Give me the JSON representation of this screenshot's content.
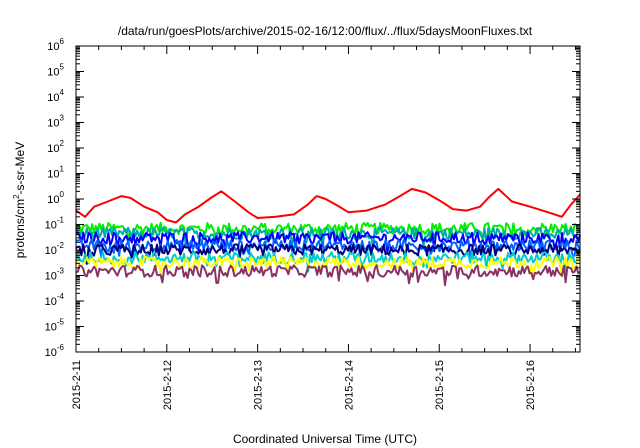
{
  "chart_data": {
    "type": "line",
    "title": "/data/run/goesPlots/archive/2015-02-16/12:00/flux/../flux/5daysMoonFluxes.txt",
    "xlabel": "Coordinated Universal Time (UTC)",
    "ylabel": "protons/cm2-s-sr-MeV",
    "ylabel_parts": {
      "pre": "protons/cm",
      "sup": "2",
      "post": "-s-sr-MeV"
    },
    "yscale": "log",
    "ylim": [
      1e-06,
      1000000.0
    ],
    "y_ticks": [
      {
        "base": "10",
        "exp": "-6",
        "value": 1e-06
      },
      {
        "base": "10",
        "exp": "-5",
        "value": 1e-05
      },
      {
        "base": "10",
        "exp": "-4",
        "value": 0.0001
      },
      {
        "base": "10",
        "exp": "-3",
        "value": 0.001
      },
      {
        "base": "10",
        "exp": "-2",
        "value": 0.01
      },
      {
        "base": "10",
        "exp": "-1",
        "value": 0.1
      },
      {
        "base": "10",
        "exp": "0",
        "value": 1
      },
      {
        "base": "10",
        "exp": "1",
        "value": 10
      },
      {
        "base": "10",
        "exp": "2",
        "value": 100
      },
      {
        "base": "10",
        "exp": "3",
        "value": 1000
      },
      {
        "base": "10",
        "exp": "4",
        "value": 10000
      },
      {
        "base": "10",
        "exp": "5",
        "value": 100000
      },
      {
        "base": "10",
        "exp": "6",
        "value": 1000000
      }
    ],
    "xlim": [
      0,
      5.55
    ],
    "x_ticks": [
      {
        "label": "2015-2-11",
        "value": 0
      },
      {
        "label": "2015-2-12",
        "value": 1
      },
      {
        "label": "2015-2-13",
        "value": 2
      },
      {
        "label": "2015-2-14",
        "value": 3
      },
      {
        "label": "2015-2-15",
        "value": 4
      },
      {
        "label": "2015-2-16",
        "value": 5
      }
    ],
    "grid": false,
    "series": [
      {
        "color": "#ff0000",
        "x": [
          0,
          0.1,
          0.2,
          0.35,
          0.5,
          0.6,
          0.75,
          0.9,
          1.0,
          1.1,
          1.2,
          1.35,
          1.5,
          1.6,
          1.75,
          1.9,
          2.0,
          2.2,
          2.4,
          2.55,
          2.65,
          2.75,
          2.9,
          3.0,
          3.2,
          3.4,
          3.55,
          3.7,
          3.85,
          4.0,
          4.15,
          4.3,
          4.45,
          4.55,
          4.65,
          4.8,
          5.0,
          5.2,
          5.35,
          5.45,
          5.55
        ],
        "values": [
          0.35,
          0.2,
          0.5,
          0.8,
          1.3,
          1.1,
          0.5,
          0.3,
          0.15,
          0.12,
          0.25,
          0.5,
          1.2,
          2.0,
          0.8,
          0.3,
          0.18,
          0.2,
          0.25,
          0.6,
          1.3,
          1.0,
          0.5,
          0.3,
          0.35,
          0.6,
          1.2,
          2.5,
          1.8,
          0.9,
          0.4,
          0.35,
          0.5,
          1.2,
          2.5,
          0.8,
          0.5,
          0.3,
          0.2,
          0.6,
          1.5
        ]
      },
      {
        "color": "#00ee00",
        "x": [
          0,
          5.55
        ],
        "values": [
          0.07,
          0.07
        ]
      },
      {
        "color": "#00aaaa",
        "x": [
          0,
          5.55
        ],
        "values": [
          0.045,
          0.045
        ]
      },
      {
        "color": "#0000ff",
        "x": [
          0,
          5.55
        ],
        "values": [
          0.03,
          0.03
        ]
      },
      {
        "color": "#0066ff",
        "x": [
          0,
          5.55
        ],
        "values": [
          0.015,
          0.015
        ]
      },
      {
        "color": "#000080",
        "x": [
          0,
          5.55
        ],
        "values": [
          0.01,
          0.01
        ]
      },
      {
        "color": "#00cccc",
        "x": [
          0,
          5.55
        ],
        "values": [
          0.005,
          0.005
        ]
      },
      {
        "color": "#ffff00",
        "x": [
          0,
          5.55
        ],
        "values": [
          0.0032,
          0.0032
        ]
      },
      {
        "color": "#883366",
        "x": [
          0,
          5.55
        ],
        "values": [
          0.0015,
          0.0015
        ]
      }
    ]
  }
}
